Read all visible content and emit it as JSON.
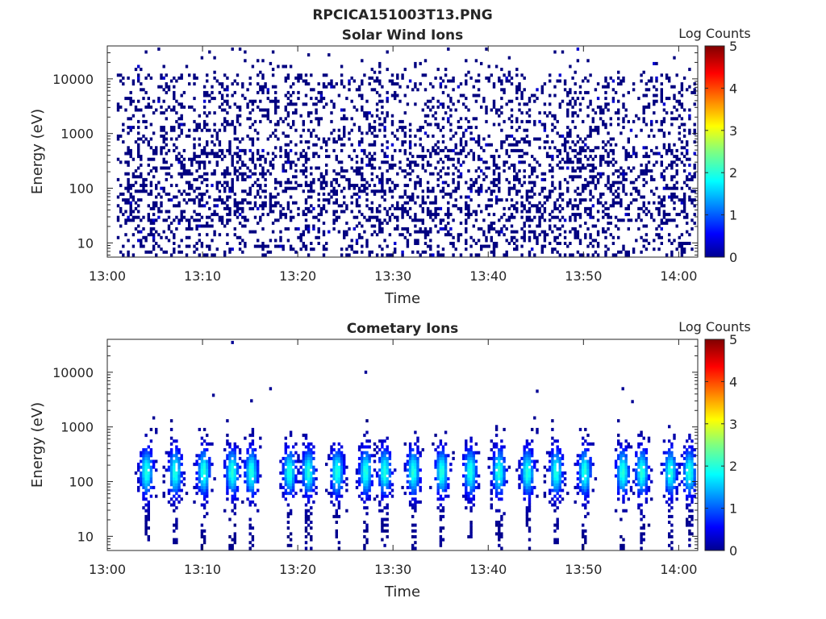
{
  "figure": {
    "title": "RPCICA151003T13.PNG"
  },
  "chart_data": [
    {
      "type": "heatmap",
      "title": "Solar Wind Ions",
      "xlabel": "Time",
      "ylabel": "Energy (eV)",
      "x_scale": "time",
      "x_range": [
        "13:00",
        "14:02"
      ],
      "x_ticks": [
        "13:00",
        "13:10",
        "13:20",
        "13:30",
        "13:40",
        "13:50",
        "14:00"
      ],
      "y_scale": "log",
      "y_range": [
        5.5,
        40000
      ],
      "y_ticks": [
        10,
        100,
        1000,
        10000
      ],
      "y_tick_labels": [
        "10",
        "100",
        "1000",
        "10000"
      ],
      "colorbar": {
        "title": "Log Counts",
        "range": [
          0,
          5
        ],
        "ticks": [
          "0",
          "1",
          "2",
          "3",
          "4",
          "5"
        ],
        "colormap": "jet"
      },
      "data_start": "13:01",
      "data_end": "14:02",
      "pattern": "sparse scattered counts (mostly log 0) across ~6 eV to ~30000 eV, denser between ~30 eV and ~500 eV",
      "typical_log_counts": 0
    },
    {
      "type": "heatmap",
      "title": "Cometary Ions",
      "xlabel": "Time",
      "ylabel": "Energy (eV)",
      "x_scale": "time",
      "x_range": [
        "13:00",
        "14:02"
      ],
      "x_ticks": [
        "13:00",
        "13:10",
        "13:20",
        "13:30",
        "13:40",
        "13:50",
        "14:00"
      ],
      "y_scale": "log",
      "y_range": [
        5.5,
        40000
      ],
      "y_ticks": [
        10,
        100,
        1000,
        10000
      ],
      "y_tick_labels": [
        "10",
        "100",
        "1000",
        "10000"
      ],
      "colorbar": {
        "title": "Log Counts",
        "range": [
          0,
          5
        ],
        "ticks": [
          "0",
          "1",
          "2",
          "3",
          "4",
          "5"
        ],
        "colormap": "jet"
      },
      "data_start": "13:01",
      "data_end": "14:02",
      "pattern": "periodic bursts roughly every 3 minutes, concentrated between ~30 eV and ~600 eV, peak near 150 eV",
      "burst_times": [
        "13:04",
        "13:07",
        "13:10",
        "13:13",
        "13:15",
        "13:19",
        "13:21",
        "13:24",
        "13:27",
        "13:29",
        "13:32",
        "13:35",
        "13:38",
        "13:41",
        "13:44",
        "13:47",
        "13:50",
        "13:54",
        "13:56",
        "13:59",
        "14:01"
      ],
      "peak_energy_eV": 150,
      "peak_log_counts": 2.0,
      "isolated_points": [
        {
          "time": "13:13",
          "energy_eV": 35000
        },
        {
          "time": "13:27",
          "energy_eV": 10000
        },
        {
          "time": "13:11",
          "energy_eV": 3800
        },
        {
          "time": "13:15",
          "energy_eV": 3000
        },
        {
          "time": "13:17",
          "energy_eV": 5000
        },
        {
          "time": "13:45",
          "energy_eV": 4500
        },
        {
          "time": "13:54",
          "energy_eV": 5000
        },
        {
          "time": "13:55",
          "energy_eV": 2900
        }
      ]
    }
  ]
}
